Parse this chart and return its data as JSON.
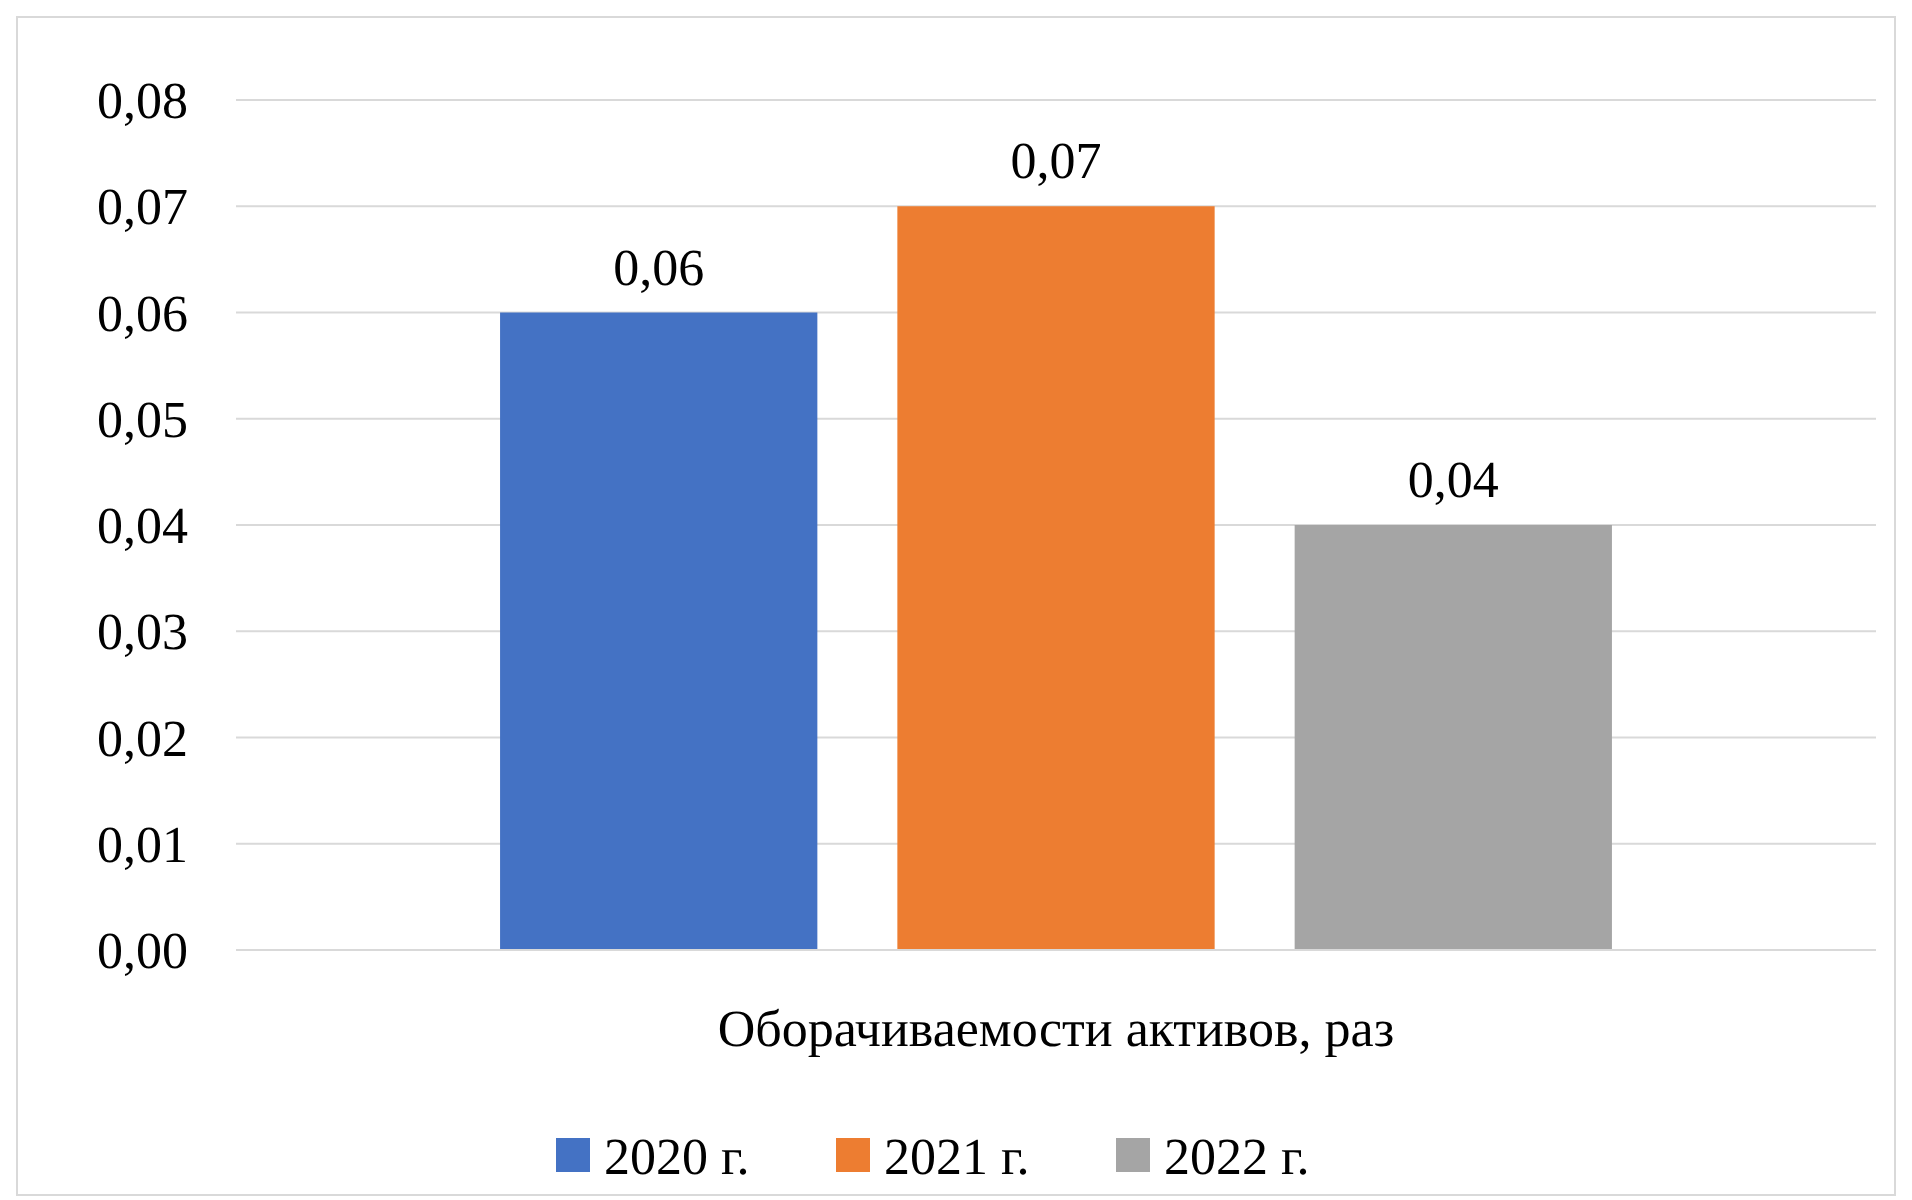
{
  "chart_data": {
    "type": "bar",
    "categories": [
      "Оборачиваемости активов, раз"
    ],
    "series": [
      {
        "name": "2020 г.",
        "color": "#4472c4",
        "values": [
          0.06
        ],
        "value_labels": [
          "0,06"
        ]
      },
      {
        "name": "2021 г.",
        "color": "#ed7d31",
        "values": [
          0.07
        ],
        "value_labels": [
          "0,07"
        ]
      },
      {
        "name": "2022 г.",
        "color": "#a5a5a5",
        "values": [
          0.04
        ],
        "value_labels": [
          "0,04"
        ]
      }
    ],
    "ylim": [
      0,
      0.08
    ],
    "yticks": [
      {
        "value": 0,
        "label": "0,00"
      },
      {
        "value": 0.01,
        "label": "0,01"
      },
      {
        "value": 0.02,
        "label": "0,02"
      },
      {
        "value": 0.03,
        "label": "0,03"
      },
      {
        "value": 0.04,
        "label": "0,04"
      },
      {
        "value": 0.05,
        "label": "0,05"
      },
      {
        "value": 0.06,
        "label": "0,06"
      },
      {
        "value": 0.07,
        "label": "0,07"
      },
      {
        "value": 0.08,
        "label": "0,08"
      }
    ],
    "grid": "y",
    "legend": "bottom"
  }
}
